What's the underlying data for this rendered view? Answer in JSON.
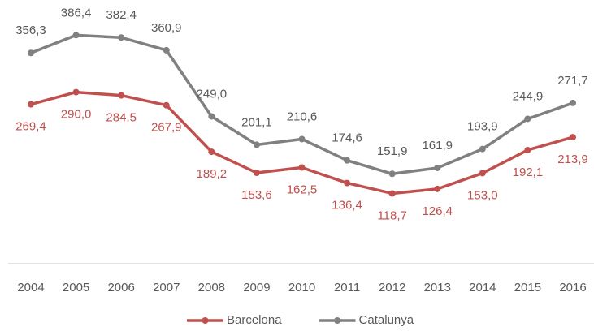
{
  "chart_data": {
    "type": "line",
    "categories": [
      "2004",
      "2005",
      "2006",
      "2007",
      "2008",
      "2009",
      "2010",
      "2011",
      "2012",
      "2013",
      "2014",
      "2015",
      "2016"
    ],
    "series": [
      {
        "name": "Barcelona",
        "color": "#c0504d",
        "values": [
          269.4,
          290.0,
          284.5,
          267.9,
          189.2,
          153.6,
          162.5,
          136.4,
          118.7,
          126.4,
          153.0,
          192.1,
          213.9
        ],
        "value_labels": [
          "269,4",
          "290,0",
          "284,5",
          "267,9",
          "189,2",
          "153,6",
          "162,5",
          "136,4",
          "118,7",
          "126,4",
          "153,0",
          "192,1",
          "213,9"
        ]
      },
      {
        "name": "Catalunya",
        "color": "#808080",
        "values": [
          356.3,
          386.4,
          382.4,
          360.9,
          249.0,
          201.1,
          210.6,
          174.6,
          151.9,
          161.9,
          193.9,
          244.9,
          271.7
        ],
        "value_labels": [
          "356,3",
          "386,4",
          "382,4",
          "360,9",
          "249,0",
          "201,1",
          "210,6",
          "174,6",
          "151,9",
          "161,9",
          "193,9",
          "244,9",
          "271,7"
        ]
      }
    ],
    "ylim": [
      0,
      400
    ],
    "legend": "bottom"
  }
}
